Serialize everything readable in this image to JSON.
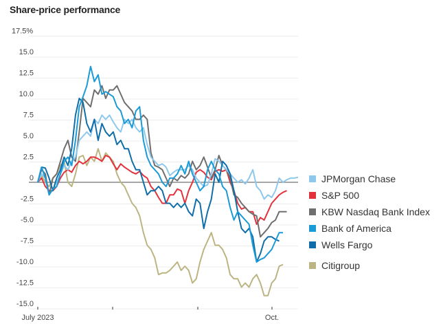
{
  "chart_data": {
    "type": "line",
    "title": "Share-price performance",
    "xlabel": "",
    "ylabel": "",
    "ylim": [
      -15,
      17.5
    ],
    "y_ticks": [
      17.5,
      15.0,
      12.5,
      10.0,
      7.5,
      5.0,
      2.5,
      0,
      -2.5,
      -5.0,
      -7.5,
      -10.0,
      -12.5,
      -15.0
    ],
    "y_tick_labels": [
      "17.5%",
      "15.0",
      "12.5",
      "10.0",
      "7.5",
      "5.0",
      "2.5",
      "0",
      "-2.5",
      "-5.0",
      "-7.5",
      "-10.0",
      "-12.5",
      "-15.0"
    ],
    "x_tick_labels": [
      {
        "label": "July 2023",
        "index": 0
      },
      {
        "label": "",
        "index": 20
      },
      {
        "label": "",
        "index": 42
      },
      {
        "label": "Oct.",
        "index": 62
      }
    ],
    "grid": true,
    "legend_position": "right",
    "series": [
      {
        "name": "JPMorgan Chase",
        "color": "#8ec8ec",
        "values": [
          0,
          1.0,
          0.5,
          -1.5,
          -0.8,
          0,
          1,
          2,
          1.5,
          2.5,
          3,
          5,
          5.5,
          6,
          5.5,
          7.5,
          7,
          8,
          7.5,
          8,
          7.2,
          6.5,
          6,
          7.5,
          7,
          7.5,
          6.5,
          6,
          6.5,
          4.5,
          3,
          2.5,
          2,
          2.2,
          1.8,
          0.8,
          1.2,
          1.5,
          1.5,
          1.5,
          2,
          1.5,
          0.5,
          0,
          -0.5,
          -0.3,
          1,
          2.8,
          2.5,
          2,
          1.5,
          1,
          0.5,
          0,
          0.3,
          -0.2,
          0.5,
          1.5,
          -0.5,
          -1,
          -2,
          -1.5,
          -1.8,
          -1,
          0.5,
          0,
          0.3,
          0.5,
          0.5,
          0.6
        ]
      },
      {
        "name": "S&P 500",
        "color": "#e3323c",
        "values": [
          0,
          0.5,
          -0.5,
          -1,
          -1,
          -0.5,
          0.5,
          1.2,
          1.5,
          1.2,
          2,
          2.5,
          2.2,
          2.5,
          3,
          3,
          2.8,
          2.5,
          3.2,
          3,
          2.2,
          1.5,
          2.2,
          1.8,
          1.5,
          1.2,
          1,
          1.3,
          0.8,
          0.5,
          -0.5,
          -1,
          -1.8,
          -2.5,
          -2.5,
          -1.5,
          -1.5,
          -0.8,
          -1,
          -2.5,
          -1,
          0,
          1.2,
          1.5,
          1.2,
          0.6,
          0.3,
          1.3,
          1.5,
          1.3,
          1.5,
          0,
          -1,
          -2.5,
          -3.2,
          -3,
          -3.5,
          -3.5,
          -5,
          -4.2,
          -4.5,
          -3.5,
          -2.5,
          -2,
          -1.5,
          -1.2,
          -1
        ]
      },
      {
        "name": "KBW Nasdaq Bank Index",
        "color": "#6e6e6e",
        "values": [
          0,
          1.5,
          1,
          -1.5,
          0.5,
          1,
          2.5,
          4,
          5,
          3,
          2.5,
          6,
          10,
          9.5,
          9,
          11,
          10.5,
          11.5,
          10,
          11,
          11,
          11.5,
          10.5,
          9.5,
          9,
          8.5,
          7.5,
          7.5,
          8,
          7.5,
          3.5,
          2,
          1.8,
          1.5,
          0.5,
          -0.5,
          0.5,
          0.2,
          0.8,
          0.5,
          1,
          2.5,
          1.5,
          2,
          3,
          1.8,
          0.5,
          1.5,
          3.2,
          2,
          1.5,
          0.5,
          -1.5,
          -1.8,
          -2.5,
          -3,
          -3.5,
          -3.8,
          -4,
          -6.5,
          -6,
          -5.5,
          -4.8,
          -4.5,
          -3.5,
          -3.5,
          -3.5
        ]
      },
      {
        "name": "Bank of America",
        "color": "#1a9ad6",
        "values": [
          0,
          1.8,
          0.5,
          -1.5,
          -0.8,
          -0.5,
          1,
          2.5,
          3,
          2,
          5,
          9,
          10.2,
          11.5,
          13.8,
          12,
          12.8,
          10.5,
          10.8,
          10.5,
          10.2,
          9,
          8.5,
          7,
          7.5,
          6.5,
          8.5,
          9,
          5,
          3,
          2,
          1.5,
          1,
          0,
          -0.5,
          0.5,
          0.5,
          1,
          2,
          1,
          2.5,
          1,
          0,
          -1,
          -0.5,
          1.5,
          2.5,
          1.5,
          1,
          -0.5,
          -1,
          -3,
          -4.5,
          -3.5,
          -4,
          -4.5,
          -5,
          -7.5,
          -9.5,
          -9.2,
          -9,
          -8.5,
          -8,
          -7,
          -6,
          -6
        ]
      },
      {
        "name": "Wells Fargo",
        "color": "#0f6ea8",
        "values": [
          0,
          1.8,
          1.7,
          0.5,
          -1,
          0.5,
          1.5,
          3,
          2,
          4,
          8,
          10,
          9.5,
          7,
          6,
          7.5,
          5,
          7,
          6,
          5.5,
          6,
          4.5,
          5,
          4,
          4,
          2.5,
          1.5,
          1.5,
          0,
          -1.5,
          -1,
          -1,
          -0.5,
          -1,
          -2.5,
          -2.5,
          -3,
          -2.5,
          -3,
          -2.5,
          -3.5,
          -4,
          -2,
          -2.5,
          -5.5,
          -3.5,
          -2,
          1,
          0,
          2.5,
          2,
          1,
          -1,
          -3.5,
          -5.5,
          -6,
          -5.5,
          -6.5,
          -9.5,
          -8.5,
          -7,
          -6.5,
          -6.5,
          -6.8,
          -7
        ]
      },
      {
        "name": "Citigroup",
        "color": "#bcb482",
        "values": [
          0,
          0.8,
          0,
          -0.5,
          0.5,
          1,
          2,
          2.5,
          0,
          -0.5,
          1,
          3,
          3.2,
          2,
          3,
          2.5,
          4,
          2.5,
          3.5,
          3,
          2.5,
          1,
          0,
          -0.5,
          -1.5,
          -2.5,
          -3,
          -4,
          -6,
          -7.5,
          -8,
          -9,
          -11,
          -10.8,
          -10.8,
          -10.5,
          -10,
          -9.5,
          -10.5,
          -10,
          -10.5,
          -12,
          -11.5,
          -9.5,
          -8,
          -7,
          -6,
          -7.5,
          -7.5,
          -8,
          -9,
          -11,
          -11.5,
          -11.5,
          -12.5,
          -12,
          -12.5,
          -11.5,
          -11,
          -12,
          -13.5,
          -13.5,
          -12,
          -11.5,
          -10,
          -9.8
        ]
      }
    ]
  }
}
